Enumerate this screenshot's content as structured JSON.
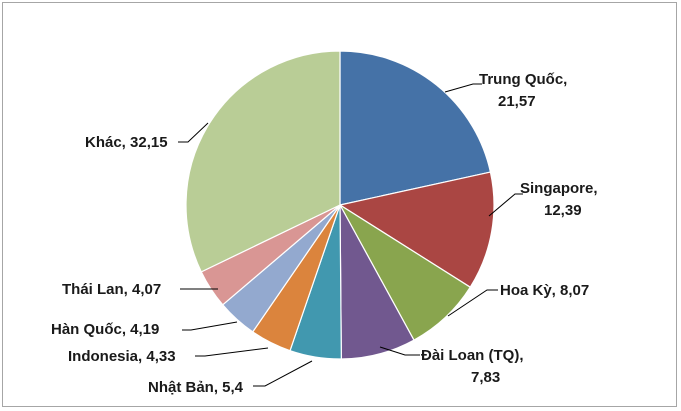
{
  "chart_data": {
    "type": "pie",
    "title": "",
    "slices": [
      {
        "name": "Trung Quốc",
        "value_label": "21,57",
        "value": 21.57,
        "color": "#4572a7"
      },
      {
        "name": "Singapore",
        "value_label": "12,39",
        "value": 12.39,
        "color": "#aa4643"
      },
      {
        "name": "Hoa Kỳ",
        "value_label": "8,07",
        "value": 8.07,
        "color": "#89a54e"
      },
      {
        "name": "Đài Loan (TQ)",
        "value_label": "7,83",
        "value": 7.83,
        "color": "#71588f"
      },
      {
        "name": "Nhật Bản",
        "value_label": "5,4",
        "value": 5.4,
        "color": "#4198af"
      },
      {
        "name": "Indonesia",
        "value_label": "4,33",
        "value": 4.33,
        "color": "#db843d"
      },
      {
        "name": "Hàn Quốc",
        "value_label": "4,19",
        "value": 4.19,
        "color": "#93a9cf"
      },
      {
        "name": "Thái Lan",
        "value_label": "4,07",
        "value": 4.07,
        "color": "#d99694"
      },
      {
        "name": "Khác",
        "value_label": "32,15",
        "value": 32.15,
        "color": "#b9cd96"
      }
    ],
    "labels": {
      "trung_quoc_1": "Trung Quốc,",
      "trung_quoc_2": "21,57",
      "singapore_1": "Singapore,",
      "singapore_2": "12,39",
      "hoa_ky": "Hoa Kỳ, 8,07",
      "dai_loan_1": "Đài Loan (TQ),",
      "dai_loan_2": "7,83",
      "nhat_ban": "Nhật Bản, 5,4",
      "indonesia": "Indonesia, 4,33",
      "han_quoc": "Hàn Quốc, 4,19",
      "thai_lan": "Thái Lan, 4,07",
      "khac": "Khác, 32,15"
    }
  }
}
